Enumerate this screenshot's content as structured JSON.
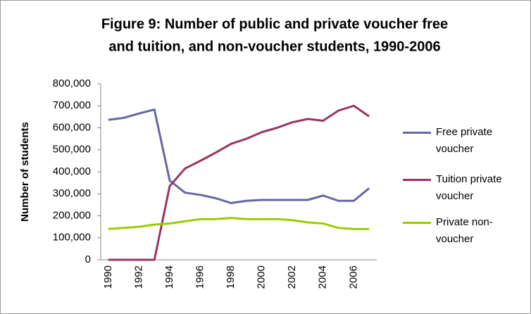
{
  "chart_data": {
    "type": "line",
    "title": [
      "Figure 9: Number of public and private voucher free",
      "and tuition, and non-voucher  students, 1990-2006"
    ],
    "y_label": "Number of students",
    "categories": [
      "1990",
      null,
      "1992",
      null,
      "1994",
      null,
      "1996",
      null,
      "1998",
      null,
      "2000",
      null,
      "2002",
      null,
      "2004",
      null,
      "2006",
      null
    ],
    "series": [
      {
        "name": "Free private voucher",
        "color": "#6466a6",
        "values": [
          636000,
          645000,
          665000,
          683000,
          360000,
          305000,
          295000,
          280000,
          258000,
          268000,
          272000,
          272000,
          272000,
          272000,
          292000,
          268000,
          268000,
          325000
        ]
      },
      {
        "name": "Tuition private voucher",
        "color": "#993463",
        "values": [
          0,
          0,
          0,
          0,
          335000,
          415000,
          450000,
          487000,
          527000,
          550000,
          580000,
          600000,
          625000,
          640000,
          632000,
          678000,
          700000,
          652000
        ]
      },
      {
        "name": "Private non-voucher",
        "color": "#99cc00",
        "values": [
          140000,
          145000,
          150000,
          160000,
          165000,
          175000,
          185000,
          185000,
          190000,
          185000,
          185000,
          185000,
          180000,
          170000,
          165000,
          145000,
          140000,
          140000
        ]
      }
    ],
    "ylim": [
      0,
      800000
    ],
    "yticks": [
      0,
      {
        "value": 100000,
        "label": "100,000"
      },
      {
        "value": 200000,
        "label": "200,000"
      },
      {
        "value": 300000,
        "label": "300,000"
      },
      {
        "value": 400000,
        "label": "400,000"
      },
      {
        "value": 500000,
        "label": "500,000"
      },
      {
        "value": 600000,
        "label": "600,000"
      },
      {
        "value": 700000,
        "label": "700,000"
      },
      {
        "value": 800000,
        "label": "800,000"
      }
    ],
    "legend": "right"
  }
}
